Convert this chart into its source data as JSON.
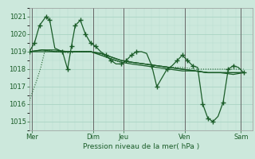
{
  "xlabel": "Pression niveau de la mer( hPa )",
  "bg_color": "#cce8dc",
  "grid_major_color": "#aad4c4",
  "grid_minor_color": "#b8dece",
  "line_color": "#1a5c28",
  "ylim": [
    1014.5,
    1021.5
  ],
  "xlim": [
    0,
    175
  ],
  "yticks": [
    1015,
    1016,
    1017,
    1018,
    1019,
    1020,
    1021
  ],
  "x_day_labels": [
    "Mer",
    "Dim",
    "Jeu",
    "Ven",
    "Sam"
  ],
  "x_day_positions": [
    2,
    50,
    74,
    122,
    166
  ],
  "dotted_series_x": [
    0,
    3,
    6,
    9,
    12,
    15,
    20,
    26,
    32,
    36,
    40,
    44,
    48,
    54,
    60,
    66,
    72,
    80,
    90,
    100,
    110,
    120,
    130,
    140,
    150,
    160,
    168
  ],
  "dotted_series_y": [
    1016.2,
    1016.8,
    1017.4,
    1018.1,
    1019.0,
    1019.1,
    1019.0,
    1019.0,
    1018.9,
    1019.0,
    1019.0,
    1019.0,
    1019.0,
    1018.9,
    1018.7,
    1018.5,
    1018.4,
    1018.4,
    1018.3,
    1018.2,
    1018.1,
    1018.1,
    1018.0,
    1018.0,
    1018.0,
    1018.0,
    1018.0
  ],
  "solid_lines": [
    {
      "x": [
        0,
        10,
        20,
        30,
        40,
        48,
        56,
        64,
        72,
        80,
        90,
        100,
        110,
        120,
        130,
        140,
        150,
        160,
        168
      ],
      "y": [
        1019.0,
        1019.1,
        1019.1,
        1019.0,
        1019.0,
        1019.0,
        1018.9,
        1018.7,
        1018.5,
        1018.4,
        1018.3,
        1018.2,
        1018.1,
        1018.0,
        1017.9,
        1017.8,
        1017.8,
        1017.8,
        1017.8
      ]
    },
    {
      "x": [
        0,
        10,
        20,
        30,
        40,
        48,
        56,
        64,
        72,
        80,
        90,
        100,
        110,
        120,
        130,
        140,
        150,
        160,
        168
      ],
      "y": [
        1019.0,
        1019.0,
        1019.0,
        1019.0,
        1019.0,
        1019.0,
        1018.8,
        1018.6,
        1018.4,
        1018.3,
        1018.2,
        1018.1,
        1018.0,
        1017.9,
        1017.9,
        1017.8,
        1017.8,
        1017.8,
        1017.8
      ]
    },
    {
      "x": [
        0,
        10,
        20,
        30,
        40,
        48,
        56,
        64,
        72,
        80,
        90,
        100,
        110,
        120,
        130,
        140,
        150,
        160,
        168
      ],
      "y": [
        1019.0,
        1019.1,
        1019.0,
        1019.0,
        1019.0,
        1019.0,
        1018.9,
        1018.7,
        1018.5,
        1018.4,
        1018.3,
        1018.2,
        1018.1,
        1018.0,
        1017.9,
        1017.8,
        1017.8,
        1017.7,
        1017.8
      ]
    }
  ],
  "peaked_series_x": [
    0,
    4,
    8,
    13,
    16,
    20,
    26,
    30,
    33,
    36,
    40,
    44,
    48,
    52,
    56,
    60,
    64,
    68,
    72,
    76,
    80,
    84,
    88,
    92,
    96,
    100,
    104,
    108,
    112,
    116,
    120,
    124,
    128,
    132,
    136,
    140,
    144,
    148,
    152,
    156,
    160,
    164,
    168
  ],
  "peaked_series_y": [
    1019.0,
    1019.5,
    1020.5,
    1021.0,
    1020.8,
    1019.2,
    1019.0,
    1018.0,
    1019.3,
    1020.5,
    1020.8,
    1020.0,
    1019.5,
    1019.3,
    1019.0,
    1018.8,
    1018.5,
    1018.3,
    1018.3,
    1018.5,
    1018.8,
    1019.0,
    1019.0,
    1018.9,
    1018.2,
    1017.0,
    1017.5,
    1018.0,
    1018.2,
    1018.5,
    1018.8,
    1018.5,
    1018.2,
    1018.1,
    1016.0,
    1015.2,
    1015.0,
    1015.3,
    1016.1,
    1018.0,
    1018.2,
    1018.1,
    1017.8
  ],
  "marker_x": [
    0,
    4,
    8,
    13,
    16,
    26,
    30,
    33,
    36,
    40,
    44,
    48,
    52,
    60,
    64,
    72,
    76,
    80,
    84,
    96,
    100,
    108,
    116,
    120,
    124,
    128,
    136,
    140,
    144,
    152,
    156,
    160,
    168
  ],
  "marker_y": [
    1019.0,
    1019.5,
    1020.5,
    1021.0,
    1020.8,
    1019.0,
    1018.0,
    1019.3,
    1020.5,
    1020.8,
    1020.0,
    1019.5,
    1019.3,
    1018.8,
    1018.5,
    1018.3,
    1018.5,
    1018.8,
    1019.0,
    1018.2,
    1017.0,
    1018.0,
    1018.5,
    1018.8,
    1018.5,
    1018.2,
    1016.0,
    1015.2,
    1015.0,
    1016.1,
    1018.0,
    1018.2,
    1017.8
  ],
  "vline_positions": [
    2,
    50,
    74,
    122,
    166
  ],
  "vline_color": "#666666"
}
